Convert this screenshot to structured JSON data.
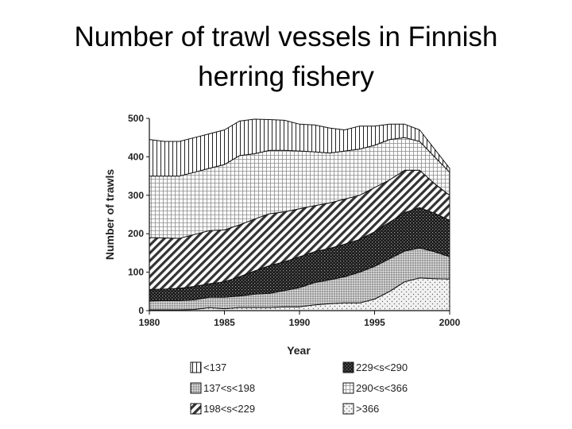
{
  "slide": {
    "title_line1": "Number of trawl vessels in Finnish",
    "title_line2": "herring fishery"
  },
  "chart_data": {
    "type": "area",
    "stacked": true,
    "title": "",
    "xlabel": "Year",
    "ylabel": "Number of trawls",
    "xlim": [
      1980,
      2000
    ],
    "ylim": [
      0,
      500
    ],
    "xticks": [
      1980,
      1985,
      1990,
      1995,
      2000
    ],
    "yticks": [
      0,
      100,
      200,
      300,
      400,
      500
    ],
    "grid": false,
    "legend_position": "bottom",
    "x": [
      1980,
      1981,
      1982,
      1983,
      1984,
      1985,
      1986,
      1987,
      1988,
      1989,
      1990,
      1991,
      1992,
      1993,
      1994,
      1995,
      1996,
      1997,
      1998,
      1999,
      2000
    ],
    "series": [
      {
        "name": ">366",
        "pattern": "dots",
        "values": [
          2,
          2,
          2,
          3,
          8,
          5,
          8,
          8,
          8,
          10,
          10,
          15,
          18,
          20,
          20,
          30,
          50,
          75,
          85,
          83,
          82
        ]
      },
      {
        "name": "137<s<198",
        "pattern": "stipple",
        "values": [
          23,
          24,
          24,
          25,
          27,
          30,
          30,
          35,
          37,
          42,
          50,
          58,
          62,
          68,
          80,
          85,
          85,
          80,
          78,
          70,
          58
        ]
      },
      {
        "name": "229<s<290",
        "pattern": "crosshatch-dark",
        "values": [
          30,
          30,
          32,
          35,
          35,
          40,
          50,
          60,
          72,
          75,
          80,
          80,
          82,
          85,
          85,
          90,
          95,
          100,
          105,
          100,
          95
        ]
      },
      {
        "name": "198<s<229",
        "pattern": "diagonal",
        "values": [
          135,
          133,
          130,
          135,
          138,
          135,
          135,
          135,
          135,
          130,
          125,
          120,
          118,
          117,
          115,
          115,
          110,
          110,
          97,
          77,
          65
        ]
      },
      {
        "name": "290<s<366",
        "pattern": "grid",
        "values": [
          160,
          161,
          162,
          162,
          162,
          170,
          180,
          170,
          165,
          160,
          150,
          140,
          130,
          125,
          120,
          110,
          105,
          85,
          75,
          70,
          60
        ]
      },
      {
        "name": "<137",
        "pattern": "vertical",
        "values": [
          95,
          90,
          90,
          90,
          90,
          90,
          90,
          90,
          80,
          78,
          70,
          70,
          65,
          55,
          60,
          50,
          40,
          35,
          30,
          20,
          10
        ]
      }
    ],
    "legend": [
      {
        "label": "<137",
        "pattern": "vertical"
      },
      {
        "label": "229<s<290",
        "pattern": "crosshatch-dark"
      },
      {
        "label": "137<s<198",
        "pattern": "stipple"
      },
      {
        "label": "290<s<366",
        "pattern": "grid"
      },
      {
        "label": "198<s<229",
        "pattern": "diagonal"
      },
      {
        "label": ">366",
        "pattern": "dots"
      }
    ]
  }
}
